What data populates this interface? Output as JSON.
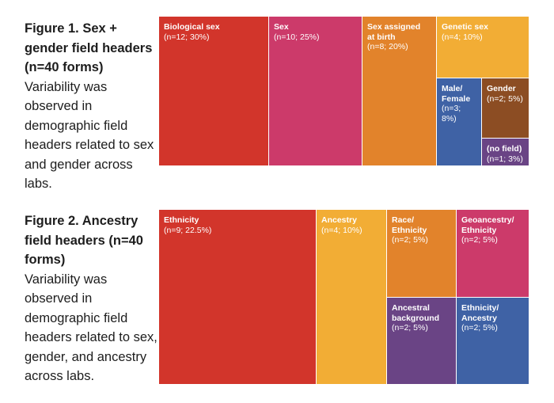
{
  "figure1": {
    "title": "Figure 1. Sex + gender field headers (n=40 forms)",
    "description": "Variability was observed in demographic field headers related to sex and gender across labs."
  },
  "figure2": {
    "title": "Figure 2. Ancestry field headers (n=40 forms)",
    "description": "Variability was observed in demographic field headers related to sex, gender, and ancestry across labs."
  },
  "chart_data": [
    {
      "type": "treemap",
      "title": "Figure 1. Sex + gender field headers (n=40 forms)",
      "total": 40,
      "items": [
        {
          "label": "Biological sex",
          "n": 12,
          "percent": 30,
          "stat": "(n=12; 30%)",
          "color": "#d2352b"
        },
        {
          "label": "Sex",
          "n": 10,
          "percent": 25,
          "stat": "(n=10; 25%)",
          "color": "#cc3a6a"
        },
        {
          "label": "Sex assigned\nat birth",
          "n": 8,
          "percent": 20,
          "stat": "(n=8; 20%)",
          "color": "#e2832b"
        },
        {
          "label": "Genetic sex",
          "n": 4,
          "percent": 10,
          "stat": "(n=4; 10%)",
          "color": "#f2ad35"
        },
        {
          "label": "Male/\nFemale",
          "n": 3,
          "percent": 8,
          "stat": "(n=3; 8%)",
          "color": "#3f62a5"
        },
        {
          "label": "Gender",
          "n": 2,
          "percent": 5,
          "stat": "(n=2; 5%)",
          "color": "#8c4d23"
        },
        {
          "label": "(no field)",
          "n": 1,
          "percent": 3,
          "stat": "(n=1; 3%)",
          "color": "#6a4485"
        }
      ]
    },
    {
      "type": "treemap",
      "title": "Figure 2. Ancestry field headers (n=40 forms)",
      "total": 40,
      "items": [
        {
          "label": "Ethnicity",
          "n": 9,
          "percent": 22.5,
          "stat": "(n=9; 22.5%)",
          "color": "#d2352b"
        },
        {
          "label": "Ancestry",
          "n": 4,
          "percent": 10,
          "stat": "(n=4; 10%)",
          "color": "#f2ad35"
        },
        {
          "label": "Race/\nEthnicity",
          "n": 2,
          "percent": 5,
          "stat": "(n=2; 5%)",
          "color": "#e2832b"
        },
        {
          "label": "Geoancestry/\nEthnicity",
          "n": 2,
          "percent": 5,
          "stat": "(n=2; 5%)",
          "color": "#cc3a6a"
        },
        {
          "label": "Ancestral\nbackground",
          "n": 2,
          "percent": 5,
          "stat": "(n=2; 5%)",
          "color": "#6a4485"
        },
        {
          "label": "Ethnicity/\nAncestry",
          "n": 2,
          "percent": 5,
          "stat": "(n=2; 5%)",
          "color": "#3f62a5"
        }
      ]
    }
  ]
}
